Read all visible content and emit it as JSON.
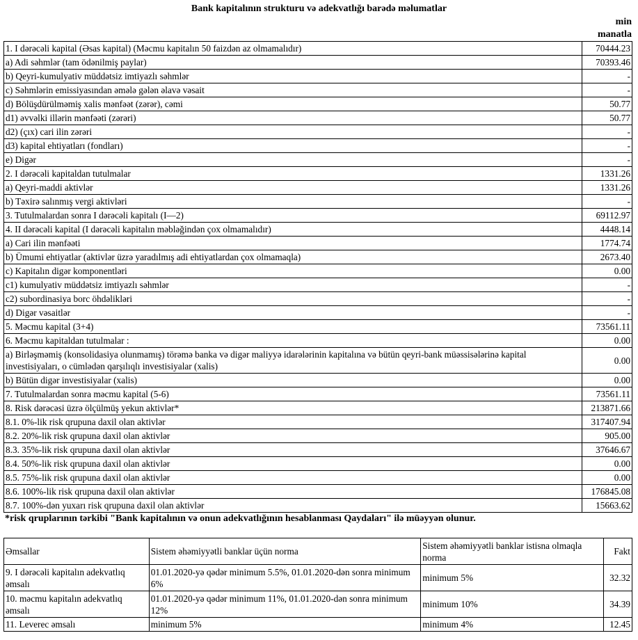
{
  "title": "Bank kapitalının strukturu və adekvatlığı barədə məlumatlar",
  "unit_line1": "min",
  "unit_line2": "manatla",
  "capital_rows": [
    {
      "label": "1. I dərəcəli kapital (Əsas kapital) (Məcmu kapitalın 50 faizdən az olmamalıdır)",
      "value": "70444.23"
    },
    {
      "label": "a) Adi səhmlər (tam ödənilmiş paylar)",
      "value": "70393.46"
    },
    {
      "label": "b) Qeyri-kumulyativ müddətsiz imtiyazlı səhmlər",
      "value": "-"
    },
    {
      "label": "c) Səhmlərin emissiyasından əmələ gələn əlavə vəsait",
      "value": "-"
    },
    {
      "label": "d) Bölüşdürülməmiş xalis mənfəət (zərər), cəmi",
      "value": "50.77"
    },
    {
      "label": "d1) əvvəlki illərin mənfəəti (zərəri)",
      "value": "50.77"
    },
    {
      "label": "d2) (çıx) cari ilin zərəri",
      "value": "-"
    },
    {
      "label": "d3) kapital ehtiyatları (fondları)",
      "value": "-"
    },
    {
      "label": "e) Digər",
      "value": "-"
    },
    {
      "label": "2. I dərəcəli kapitaldan tutulmalar",
      "value": "1331.26"
    },
    {
      "label": "a) Qeyri-maddi aktivlər",
      "value": "1331.26"
    },
    {
      "label": "b) Təxirə salınmış vergi aktivləri",
      "value": "-"
    },
    {
      "label": "3. Tutulmalardan sonra I dərəcəli kapitalı (I—2)",
      "value": "69112.97"
    },
    {
      "label": "4. II dərəcəli kapital (I dərəcəli kapitalın məbləğindən çox olmamalıdır)",
      "value": "4448.14"
    },
    {
      "label": "a) Cari ilin mənfəəti",
      "value": "1774.74"
    },
    {
      "label": "b) Ümumi ehtiyatlar (aktivlər üzrə yaradılmış adi ehtiyatlardan çox olmamaqla)",
      "value": "2673.40"
    },
    {
      "label": "c) Kapitalın digər komponentləri",
      "value": "0.00"
    },
    {
      "label": "c1) kumulyativ müddətsiz imtiyazlı səhmlər",
      "value": "-"
    },
    {
      "label": "c2) subordinasiya borc öhdəlikləri",
      "value": "-"
    },
    {
      "label": "d) Digər vəsaitlər",
      "value": "-"
    },
    {
      "label": "5. Məcmu kapital (3+4)",
      "value": "73561.11"
    },
    {
      "label": "6. Məcmu kapitaldan tutulmalar :",
      "value": "0.00"
    },
    {
      "label": "a)   Birləşməmiş (konsolidasiya olunmamış) törəmə banka və digər maliyyə idarələrinin kapitalına və bütün qeyri-bank müəssisələrinə kapital investisiyaları, o cümlədən qarşılıqlı investisiyalar (xalis)",
      "value": "0.00"
    },
    {
      "label": "b) Bütün digər investisiyalar (xalis)",
      "value": "0.00"
    },
    {
      "label": "7. Tutulmalardan sonra məcmu kapital (5-6)",
      "value": "73561.11"
    },
    {
      "label": "8. Risk dərəcəsi üzrə ölçülmüş yekun aktivlər*",
      "value": "213871.66"
    },
    {
      "label": "8.1. 0%-lik risk qrupuna daxil olan aktivlər",
      "value": "317407.94"
    },
    {
      "label": "8.2. 20%-lik risk qrupuna daxil olan aktivlər",
      "value": "905.00"
    },
    {
      "label": "8.3. 35%-lik risk qrupuna daxil olan aktivlər",
      "value": "37646.67"
    },
    {
      "label": "8.4. 50%-lik risk qrupuna daxil olan aktivlər",
      "value": "0.00"
    },
    {
      "label": "8.5. 75%-lik risk qrupuna daxil olan aktivlər",
      "value": "0.00"
    },
    {
      "label": "8.6. 100%-lik risk qrupuna daxil olan aktivlər",
      "value": "176845.08"
    },
    {
      "label": "8.7. 100%-dən yuxarı risk qrupuna daxil olan aktivlər",
      "value": "15663.62"
    }
  ],
  "footnote": "*risk qruplarının tərkibi \"Bank kapitalının və onun adekvatlığının hesablanması Qaydaları\" ilə müəyyən olunur.",
  "ratios": {
    "headers": [
      "Əmsallar",
      "Sistem əhəmiyyətli banklar üçün norma",
      "Sistem əhəmiyyətli banklar istisna olmaqla norma",
      "Fakt"
    ],
    "rows": [
      {
        "name": "9. I dərəcəli kapitalın adekvatlıq əmsalı",
        "norm_systemic": "01.01.2020-yə qədər minimum 5.5%, 01.01.2020-dən sonra minimum 6%",
        "norm_other": "minimum 5%",
        "fact": "32.32"
      },
      {
        "name": "10. məcmu kapitalın adekvatlıq əmsalı",
        "norm_systemic": "01.01.2020-yə qədər minimum 11%, 01.01.2020-dən sonra minimum 12%",
        "norm_other": "minimum 10%",
        "fact": "34.39"
      },
      {
        "name": "11. Leverec əmsalı",
        "norm_systemic": "minimum 5%",
        "norm_other": "minimum 4%",
        "fact": "12.45"
      }
    ]
  }
}
